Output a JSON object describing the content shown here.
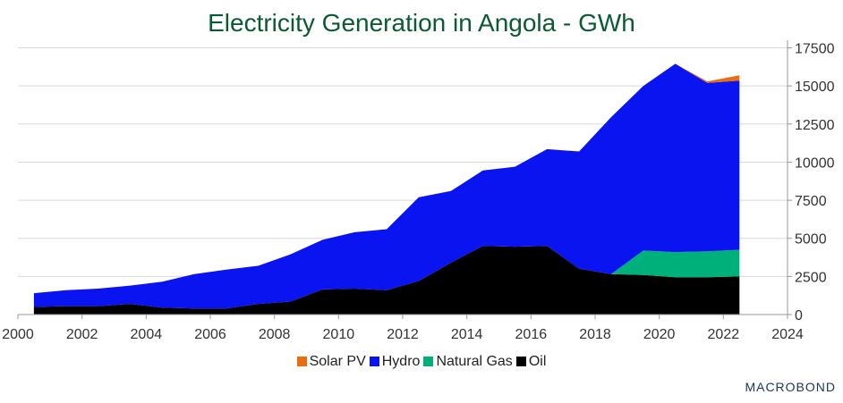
{
  "brand": "MACROBOND",
  "chart_data": {
    "type": "area",
    "title": "Electricity Generation in Angola - GWh",
    "xlabel": "",
    "ylabel": "",
    "xlim": [
      2000,
      2024
    ],
    "ylim": [
      0,
      18000
    ],
    "x_ticks": [
      "2000",
      "2002",
      "2004",
      "2006",
      "2008",
      "2010",
      "2012",
      "2014",
      "2016",
      "2018",
      "2020",
      "2022",
      "2024"
    ],
    "y_ticks": [
      "0",
      "2500",
      "5000",
      "7500",
      "10000",
      "12500",
      "15000",
      "17500"
    ],
    "y_axis_side": "right",
    "grid": "horizontal",
    "legend_position": "bottom",
    "stacked": true,
    "x": [
      2000.5,
      2001.5,
      2002.5,
      2003.5,
      2004.5,
      2005.5,
      2006.5,
      2007.5,
      2008.5,
      2009.5,
      2010.5,
      2011.5,
      2012.5,
      2013.5,
      2014.5,
      2015.5,
      2016.5,
      2017.5,
      2018.5,
      2019.5,
      2020.5,
      2021.5,
      2022.5
    ],
    "series": [
      {
        "name": "Oil",
        "color": "#000000",
        "values": [
          500,
          550,
          550,
          700,
          450,
          400,
          400,
          700,
          850,
          1650,
          1700,
          1600,
          2200,
          3400,
          4500,
          4450,
          4500,
          3000,
          2650,
          2600,
          2450,
          2450,
          2500
        ]
      },
      {
        "name": "Natural Gas",
        "color": "#00b07a",
        "values": [
          0,
          0,
          0,
          0,
          0,
          0,
          0,
          0,
          0,
          0,
          0,
          0,
          0,
          0,
          0,
          0,
          0,
          0,
          0,
          1600,
          1650,
          1700,
          1750
        ]
      },
      {
        "name": "Hydro",
        "color": "#0a14f0",
        "values": [
          900,
          1050,
          1150,
          1200,
          1700,
          2250,
          2550,
          2500,
          3100,
          3250,
          3700,
          4000,
          5500,
          4700,
          4950,
          5250,
          6350,
          7700,
          10300,
          10800,
          12350,
          11050,
          11100
        ]
      },
      {
        "name": "Solar PV",
        "color": "#e86e0f",
        "values": [
          0,
          0,
          0,
          0,
          0,
          0,
          0,
          0,
          0,
          0,
          0,
          0,
          0,
          0,
          0,
          0,
          0,
          0,
          0,
          0,
          0,
          100,
          350
        ]
      }
    ],
    "legend": [
      "Solar PV",
      "Hydro",
      "Natural Gas",
      "Oil"
    ]
  }
}
